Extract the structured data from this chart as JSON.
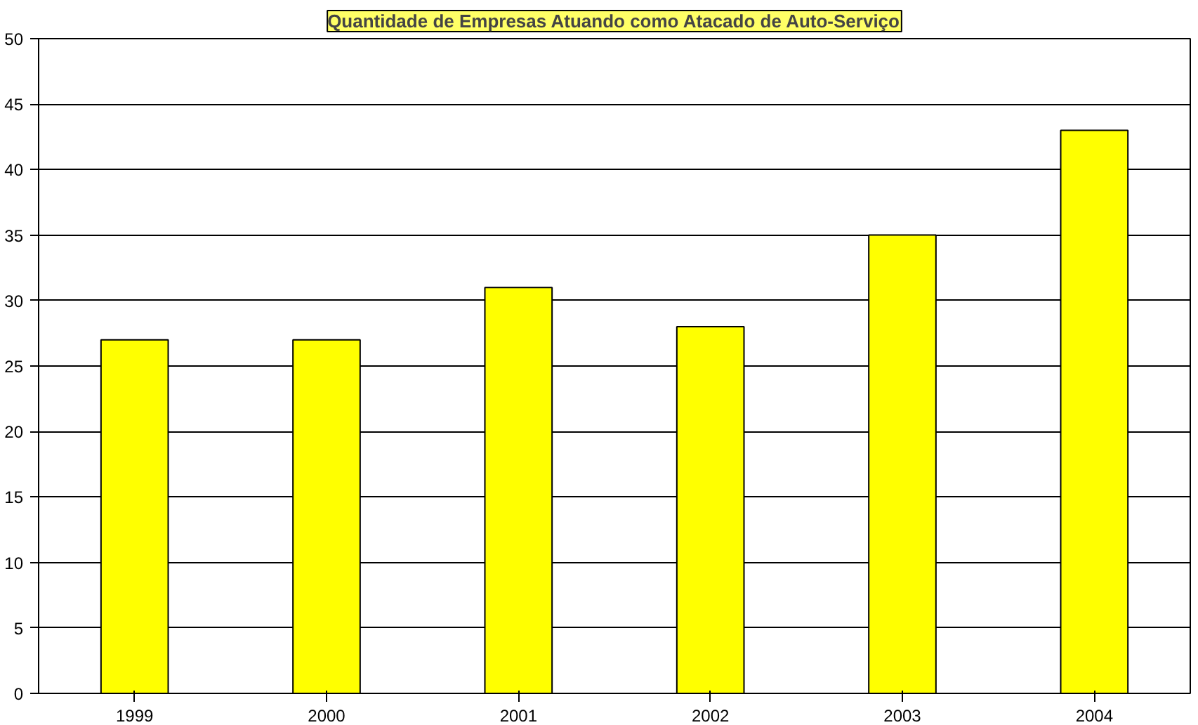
{
  "chart_data": {
    "type": "bar",
    "title": "Quantidade de Empresas Atuando como Atacado de Auto-Serviço",
    "categories": [
      "1999",
      "2000",
      "2001",
      "2002",
      "2003",
      "2004"
    ],
    "values": [
      27,
      27,
      31,
      28,
      35,
      43
    ],
    "color": "#ffff00",
    "ylim": [
      0,
      50
    ],
    "yticks": [
      0,
      5,
      10,
      15,
      20,
      25,
      30,
      35,
      40,
      45,
      50
    ],
    "grid": "y"
  }
}
